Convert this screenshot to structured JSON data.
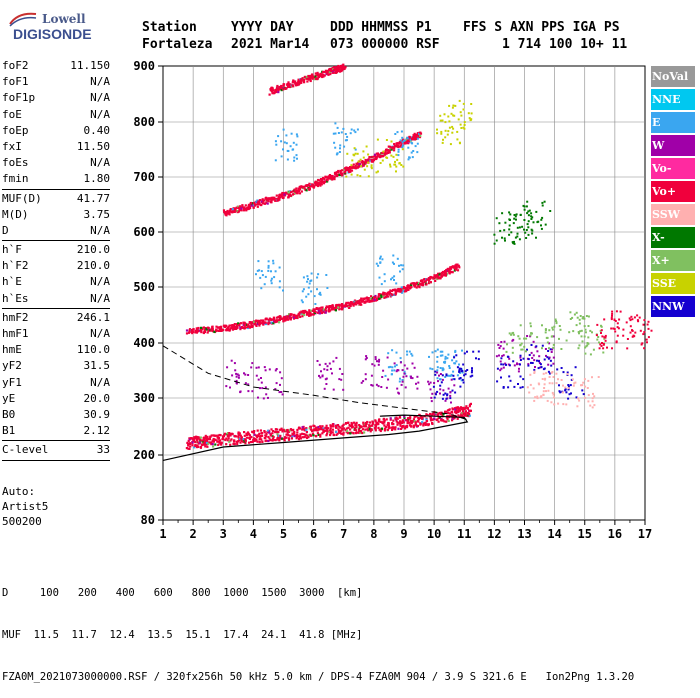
{
  "logo": {
    "line1": "Lowell",
    "line2": "DIGISONDE"
  },
  "header": {
    "row1": [
      "Station",
      "YYYY DAY",
      "DDD HHMMSS P1",
      "FFS S AXN PPS IGA PS"
    ],
    "row2": [
      "Fortaleza",
      "2021 Mar14",
      "073 000000 RSF",
      "1 714 100 10+ 11"
    ]
  },
  "params": [
    [
      {
        "k": "foF2",
        "v": "11.150"
      },
      {
        "k": "foF1",
        "v": "N/A"
      },
      {
        "k": "foF1p",
        "v": "N/A"
      },
      {
        "k": "foE",
        "v": "N/A"
      },
      {
        "k": "foEp",
        "v": "0.40"
      },
      {
        "k": "fxI",
        "v": "11.50"
      },
      {
        "k": "foEs",
        "v": "N/A"
      },
      {
        "k": "fmin",
        "v": "1.80"
      }
    ],
    [
      {
        "k": "MUF(D)",
        "v": "41.77"
      },
      {
        "k": "M(D)",
        "v": "3.75"
      },
      {
        "k": "D",
        "v": "N/A"
      }
    ],
    [
      {
        "k": "h`F",
        "v": "210.0"
      },
      {
        "k": "h`F2",
        "v": "210.0"
      },
      {
        "k": "h`E",
        "v": "N/A"
      },
      {
        "k": "h`Es",
        "v": "N/A"
      }
    ],
    [
      {
        "k": "hmF2",
        "v": "246.1"
      },
      {
        "k": "hmF1",
        "v": "N/A"
      },
      {
        "k": "hmE",
        "v": "110.0"
      },
      {
        "k": "yF2",
        "v": "31.5"
      },
      {
        "k": "yF1",
        "v": "N/A"
      },
      {
        "k": "yE",
        "v": "20.0"
      },
      {
        "k": "B0",
        "v": "30.9"
      },
      {
        "k": "B1",
        "v": "2.12"
      }
    ],
    [
      {
        "k": "C-level",
        "v": "33"
      }
    ]
  ],
  "auto": [
    "Auto:",
    "Artist5",
    "500200"
  ],
  "legend": [
    {
      "label": "NoVal",
      "color": "#999999"
    },
    {
      "label": "NNE",
      "color": "#00c8f0"
    },
    {
      "label": "E",
      "color": "#3aa6f0"
    },
    {
      "label": "W",
      "color": "#a000a8"
    },
    {
      "label": "Vo-",
      "color": "#ff2aa0"
    },
    {
      "label": "Vo+",
      "color": "#f0003c"
    },
    {
      "label": "SSW",
      "color": "#ffb0b0"
    },
    {
      "label": "X-",
      "color": "#007800"
    },
    {
      "label": "X+",
      "color": "#80c060"
    },
    {
      "label": "SSE",
      "color": "#c8d200"
    },
    {
      "label": "NNW",
      "color": "#1400d0"
    }
  ],
  "footer": {
    "row1_label": "D",
    "row1_values": [
      "100",
      "200",
      "400",
      "600",
      "800",
      "1000",
      "1500",
      "3000",
      "[km]"
    ],
    "row2_label": "MUF",
    "row2_values": [
      "11.5",
      "11.7",
      "12.4",
      "13.5",
      "15.1",
      "17.4",
      "24.1",
      "41.8",
      "[MHz]"
    ],
    "row3": "FZA0M_2021073000000.RSF / 320fx256h 50 kHz 5.0 km / DPS-4 FZA0M 904 / 3.9 S 321.6 E   Ion2Png 1.3.20"
  },
  "chart_data": {
    "type": "scatter",
    "title": "",
    "xlabel": "",
    "ylabel": "",
    "xlim": [
      1,
      17
    ],
    "ylim": [
      80,
      900
    ],
    "x_ticks": [
      "1",
      "2",
      "3",
      "4",
      "5",
      "6",
      "7",
      "8",
      "9",
      "10",
      "11",
      "12",
      "13",
      "14",
      "15",
      "16",
      "17"
    ],
    "y_ticks": [
      "80",
      "200",
      "300",
      "400",
      "500",
      "600",
      "700",
      "800",
      "900"
    ],
    "grid": true,
    "legend_position": "right",
    "traces": [
      {
        "name": "O-trace F (1st hop)",
        "color": "#f0003c",
        "points": [
          [
            1.8,
            222
          ],
          [
            2.5,
            226
          ],
          [
            3.5,
            232
          ],
          [
            4.5,
            236
          ],
          [
            5.5,
            240
          ],
          [
            6.5,
            246
          ],
          [
            7.5,
            250
          ],
          [
            8.5,
            256
          ],
          [
            9.5,
            262
          ],
          [
            10.5,
            272
          ],
          [
            11.2,
            282
          ]
        ]
      },
      {
        "name": "O-trace F (2nd hop)",
        "color": "#f0003c",
        "points": [
          [
            1.8,
            422
          ],
          [
            3,
            428
          ],
          [
            4,
            436
          ],
          [
            5,
            446
          ],
          [
            6,
            458
          ],
          [
            7,
            468
          ],
          [
            8,
            482
          ],
          [
            9,
            498
          ],
          [
            10,
            518
          ],
          [
            10.8,
            540
          ]
        ]
      },
      {
        "name": "O-trace F (3rd hop)",
        "color": "#f0003c",
        "points": [
          [
            3,
            636
          ],
          [
            4,
            652
          ],
          [
            5,
            668
          ],
          [
            6,
            688
          ],
          [
            7,
            712
          ],
          [
            8,
            738
          ],
          [
            9,
            766
          ],
          [
            9.5,
            780
          ]
        ]
      },
      {
        "name": "O-trace F (4th hop)",
        "color": "#f0003c",
        "points": [
          [
            4.5,
            856
          ],
          [
            5.5,
            874
          ],
          [
            6.5,
            892
          ],
          [
            7,
            900
          ]
        ]
      }
    ],
    "profile": {
      "solid": [
        [
          1,
          190
        ],
        [
          3,
          214
        ],
        [
          5,
          222
        ],
        [
          7,
          230
        ],
        [
          8.5,
          236
        ],
        [
          9.5,
          242
        ],
        [
          10.5,
          252
        ],
        [
          11.1,
          258
        ],
        [
          11,
          266
        ],
        [
          10,
          268
        ],
        [
          9,
          270
        ],
        [
          8.2,
          268
        ]
      ],
      "dashed": [
        [
          1,
          395
        ],
        [
          2.5,
          345
        ],
        [
          4,
          320
        ],
        [
          6,
          305
        ],
        [
          7.5,
          292
        ],
        [
          9,
          282
        ],
        [
          10.5,
          272
        ],
        [
          11.1,
          262
        ]
      ]
    },
    "scatter_clusters": [
      {
        "color": "#3aa6f0",
        "points": [
          [
            4.5,
            520
          ],
          [
            6,
            500
          ],
          [
            8.5,
            530
          ],
          [
            9,
            760
          ],
          [
            5,
            760
          ],
          [
            7,
            770
          ],
          [
            10.2,
            365
          ],
          [
            10.5,
            358
          ],
          [
            8.8,
            360
          ]
        ]
      },
      {
        "color": "#a000a8",
        "points": [
          [
            3.5,
            340
          ],
          [
            4.5,
            330
          ],
          [
            6.5,
            345
          ],
          [
            8,
            350
          ],
          [
            9,
            340
          ],
          [
            10.2,
            320
          ],
          [
            12.5,
            380
          ],
          [
            13.5,
            385
          ]
        ]
      },
      {
        "color": "#1400d0",
        "points": [
          [
            10.4,
            330
          ],
          [
            11,
            360
          ],
          [
            12.5,
            350
          ],
          [
            13.5,
            370
          ],
          [
            14.5,
            330
          ]
        ]
      },
      {
        "color": "#80c060",
        "points": [
          [
            12.8,
            410
          ],
          [
            13.8,
            420
          ],
          [
            14.8,
            430
          ],
          [
            15.2,
            410
          ]
        ]
      },
      {
        "color": "#007800",
        "points": [
          [
            12.4,
            610
          ],
          [
            12.9,
            620
          ],
          [
            13.4,
            630
          ]
        ]
      },
      {
        "color": "#c8d200",
        "points": [
          [
            10.5,
            790
          ],
          [
            10.8,
            810
          ],
          [
            7.5,
            730
          ],
          [
            8.5,
            740
          ]
        ]
      },
      {
        "color": "#ffb0b0",
        "points": [
          [
            13.5,
            320
          ],
          [
            14,
            320
          ],
          [
            15,
            315
          ]
        ]
      },
      {
        "color": "#f0003c",
        "points": [
          [
            15.8,
            420
          ],
          [
            16.3,
            430
          ],
          [
            16.8,
            420
          ]
        ]
      }
    ]
  }
}
